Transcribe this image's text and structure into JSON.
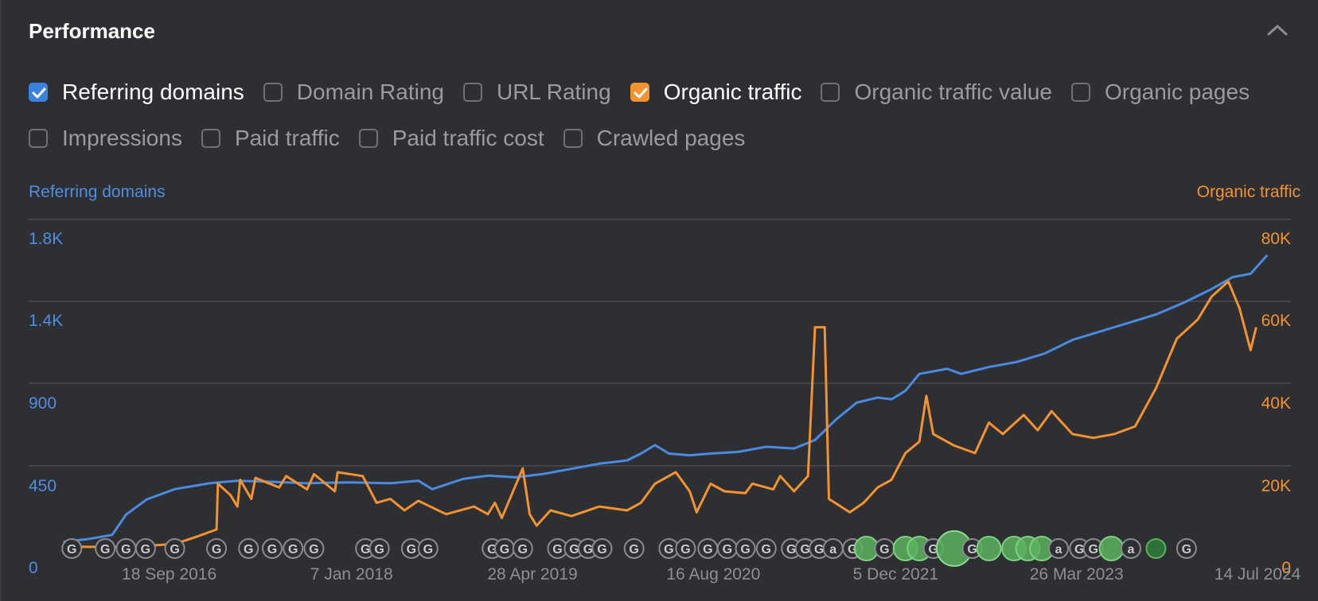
{
  "panel": {
    "title": "Performance"
  },
  "icons": {
    "collapse": "chevron-up-icon",
    "checkbox_checked": "check-icon",
    "google_update": "google-g-icon"
  },
  "colors": {
    "background": "#2e2f32",
    "referring_domains": "#4a8ae0",
    "organic_traffic": "#f39231",
    "grid": "#4a4b4f",
    "marker_gray": "#8a8b8f",
    "marker_green": "#5bb15e"
  },
  "metrics": [
    {
      "key": "referring-domains",
      "label": "Referring domains",
      "checked": true,
      "color": "blue"
    },
    {
      "key": "domain-rating",
      "label": "Domain Rating",
      "checked": false
    },
    {
      "key": "url-rating",
      "label": "URL Rating",
      "checked": false
    },
    {
      "key": "organic-traffic",
      "label": "Organic traffic",
      "checked": true,
      "color": "orange"
    },
    {
      "key": "organic-traffic-value",
      "label": "Organic traffic value",
      "checked": false
    },
    {
      "key": "organic-pages",
      "label": "Organic pages",
      "checked": false
    },
    {
      "key": "impressions",
      "label": "Impressions",
      "checked": false
    },
    {
      "key": "paid-traffic",
      "label": "Paid traffic",
      "checked": false
    },
    {
      "key": "paid-traffic-cost",
      "label": "Paid traffic cost",
      "checked": false
    },
    {
      "key": "crawled-pages",
      "label": "Crawled pages",
      "checked": false
    }
  ],
  "chart_data": {
    "type": "line",
    "left_axis_title": "Referring domains",
    "right_axis_title": "Organic traffic",
    "left_ticks": [
      "0",
      "450",
      "900",
      "1.4K",
      "1.8K"
    ],
    "right_ticks": [
      "0",
      "20K",
      "40K",
      "60K",
      "80K"
    ],
    "left_ylim": [
      0,
      1800
    ],
    "right_ylim": [
      0,
      80000
    ],
    "x_ticks": [
      {
        "label": "18 Sep 2016",
        "t": 2016.71
      },
      {
        "label": "7 Jan 2018",
        "t": 2018.02
      },
      {
        "label": "28 Apr 2019",
        "t": 2019.32
      },
      {
        "label": "16 Aug 2020",
        "t": 2020.62
      },
      {
        "label": "5 Dec 2021",
        "t": 2021.93
      },
      {
        "label": "26 Mar 2023",
        "t": 2023.23
      },
      {
        "label": "14 Jul 2024",
        "t": 2024.53
      }
    ],
    "xlim": [
      2015.7,
      2024.77
    ],
    "grid": true,
    "series": [
      {
        "name": "Referring domains",
        "axis": "left",
        "points": [
          [
            2015.95,
            40
          ],
          [
            2016.12,
            55
          ],
          [
            2016.3,
            80
          ],
          [
            2016.4,
            200
          ],
          [
            2016.55,
            290
          ],
          [
            2016.75,
            350
          ],
          [
            2017.0,
            385
          ],
          [
            2017.2,
            400
          ],
          [
            2017.4,
            395
          ],
          [
            2017.7,
            385
          ],
          [
            2018.0,
            390
          ],
          [
            2018.3,
            385
          ],
          [
            2018.5,
            400
          ],
          [
            2018.6,
            350
          ],
          [
            2018.82,
            410
          ],
          [
            2019.0,
            430
          ],
          [
            2019.2,
            420
          ],
          [
            2019.4,
            440
          ],
          [
            2019.6,
            470
          ],
          [
            2019.8,
            500
          ],
          [
            2020.0,
            520
          ],
          [
            2020.1,
            560
          ],
          [
            2020.2,
            610
          ],
          [
            2020.3,
            560
          ],
          [
            2020.45,
            550
          ],
          [
            2020.6,
            560
          ],
          [
            2020.8,
            570
          ],
          [
            2021.0,
            600
          ],
          [
            2021.2,
            590
          ],
          [
            2021.35,
            640
          ],
          [
            2021.5,
            760
          ],
          [
            2021.65,
            860
          ],
          [
            2021.8,
            890
          ],
          [
            2021.9,
            880
          ],
          [
            2022.0,
            930
          ],
          [
            2022.1,
            1030
          ],
          [
            2022.3,
            1060
          ],
          [
            2022.4,
            1030
          ],
          [
            2022.6,
            1070
          ],
          [
            2022.8,
            1100
          ],
          [
            2023.0,
            1150
          ],
          [
            2023.2,
            1230
          ],
          [
            2023.4,
            1280
          ],
          [
            2023.6,
            1330
          ],
          [
            2023.8,
            1380
          ],
          [
            2024.0,
            1450
          ],
          [
            2024.2,
            1530
          ],
          [
            2024.35,
            1600
          ],
          [
            2024.48,
            1620
          ],
          [
            2024.6,
            1730
          ]
        ]
      },
      {
        "name": "Organic traffic",
        "axis": "right",
        "points": [
          [
            2015.95,
            500
          ],
          [
            2016.3,
            400
          ],
          [
            2016.5,
            600
          ],
          [
            2016.75,
            1200
          ],
          [
            2016.9,
            3000
          ],
          [
            2017.05,
            5000
          ],
          [
            2017.06,
            17000
          ],
          [
            2017.15,
            14000
          ],
          [
            2017.2,
            11000
          ],
          [
            2017.22,
            18000
          ],
          [
            2017.3,
            13000
          ],
          [
            2017.33,
            18500
          ],
          [
            2017.5,
            16000
          ],
          [
            2017.55,
            19000
          ],
          [
            2017.7,
            15500
          ],
          [
            2017.75,
            19500
          ],
          [
            2017.9,
            15000
          ],
          [
            2017.92,
            20000
          ],
          [
            2018.1,
            19000
          ],
          [
            2018.2,
            12000
          ],
          [
            2018.3,
            13000
          ],
          [
            2018.4,
            10000
          ],
          [
            2018.5,
            12500
          ],
          [
            2018.7,
            9000
          ],
          [
            2018.9,
            11000
          ],
          [
            2019.0,
            9000
          ],
          [
            2019.05,
            12000
          ],
          [
            2019.1,
            8000
          ],
          [
            2019.25,
            21000
          ],
          [
            2019.3,
            9000
          ],
          [
            2019.35,
            6000
          ],
          [
            2019.45,
            10000
          ],
          [
            2019.6,
            8500
          ],
          [
            2019.8,
            11000
          ],
          [
            2020.0,
            10000
          ],
          [
            2020.1,
            12000
          ],
          [
            2020.2,
            17000
          ],
          [
            2020.35,
            20000
          ],
          [
            2020.45,
            15000
          ],
          [
            2020.5,
            9500
          ],
          [
            2020.6,
            17000
          ],
          [
            2020.7,
            15000
          ],
          [
            2020.85,
            14500
          ],
          [
            2020.9,
            17000
          ],
          [
            2021.05,
            15500
          ],
          [
            2021.1,
            19000
          ],
          [
            2021.2,
            15000
          ],
          [
            2021.3,
            19000
          ],
          [
            2021.35,
            58000
          ],
          [
            2021.42,
            58000
          ],
          [
            2021.45,
            13000
          ],
          [
            2021.6,
            9500
          ],
          [
            2021.7,
            12000
          ],
          [
            2021.8,
            16000
          ],
          [
            2021.9,
            18000
          ],
          [
            2022.0,
            25000
          ],
          [
            2022.1,
            28000
          ],
          [
            2022.15,
            40000
          ],
          [
            2022.2,
            30000
          ],
          [
            2022.35,
            27000
          ],
          [
            2022.5,
            25000
          ],
          [
            2022.6,
            33000
          ],
          [
            2022.7,
            30000
          ],
          [
            2022.85,
            35000
          ],
          [
            2022.95,
            31000
          ],
          [
            2023.05,
            36000
          ],
          [
            2023.2,
            30000
          ],
          [
            2023.35,
            29000
          ],
          [
            2023.5,
            30000
          ],
          [
            2023.65,
            32000
          ],
          [
            2023.8,
            42000
          ],
          [
            2023.95,
            55000
          ],
          [
            2024.1,
            60000
          ],
          [
            2024.2,
            66000
          ],
          [
            2024.32,
            70000
          ],
          [
            2024.4,
            63000
          ],
          [
            2024.48,
            52000
          ],
          [
            2024.52,
            58000
          ]
        ]
      }
    ],
    "annotation_markers": [
      {
        "t": 2016.01,
        "kind": "G"
      },
      {
        "t": 2016.25,
        "kind": "G"
      },
      {
        "t": 2016.4,
        "kind": "G"
      },
      {
        "t": 2016.54,
        "kind": "G"
      },
      {
        "t": 2016.75,
        "kind": "G"
      },
      {
        "t": 2017.05,
        "kind": "G"
      },
      {
        "t": 2017.28,
        "kind": "G"
      },
      {
        "t": 2017.45,
        "kind": "G"
      },
      {
        "t": 2017.6,
        "kind": "G"
      },
      {
        "t": 2017.75,
        "kind": "G"
      },
      {
        "t": 2018.12,
        "kind": "G"
      },
      {
        "t": 2018.22,
        "kind": "G"
      },
      {
        "t": 2018.45,
        "kind": "G"
      },
      {
        "t": 2018.57,
        "kind": "G"
      },
      {
        "t": 2019.03,
        "kind": "G"
      },
      {
        "t": 2019.12,
        "kind": "G"
      },
      {
        "t": 2019.25,
        "kind": "G"
      },
      {
        "t": 2019.5,
        "kind": "G"
      },
      {
        "t": 2019.62,
        "kind": "G"
      },
      {
        "t": 2019.72,
        "kind": "G"
      },
      {
        "t": 2019.82,
        "kind": "G"
      },
      {
        "t": 2020.05,
        "kind": "G"
      },
      {
        "t": 2020.3,
        "kind": "G"
      },
      {
        "t": 2020.42,
        "kind": "G"
      },
      {
        "t": 2020.58,
        "kind": "G"
      },
      {
        "t": 2020.72,
        "kind": "G"
      },
      {
        "t": 2020.85,
        "kind": "G"
      },
      {
        "t": 2021.0,
        "kind": "G"
      },
      {
        "t": 2021.18,
        "kind": "G"
      },
      {
        "t": 2021.28,
        "kind": "G"
      },
      {
        "t": 2021.38,
        "kind": "G"
      },
      {
        "t": 2021.48,
        "kind": "a"
      },
      {
        "t": 2021.62,
        "kind": "G"
      },
      {
        "t": 2021.72,
        "kind": "green"
      },
      {
        "t": 2021.85,
        "kind": "G"
      },
      {
        "t": 2022.0,
        "kind": "green"
      },
      {
        "t": 2022.1,
        "kind": "green"
      },
      {
        "t": 2022.2,
        "kind": "G"
      },
      {
        "t": 2022.35,
        "kind": "green_big"
      },
      {
        "t": 2022.48,
        "kind": "G"
      },
      {
        "t": 2022.6,
        "kind": "green"
      },
      {
        "t": 2022.78,
        "kind": "green"
      },
      {
        "t": 2022.88,
        "kind": "green"
      },
      {
        "t": 2022.98,
        "kind": "green"
      },
      {
        "t": 2023.1,
        "kind": "a"
      },
      {
        "t": 2023.25,
        "kind": "G"
      },
      {
        "t": 2023.35,
        "kind": "G"
      },
      {
        "t": 2023.48,
        "kind": "green"
      },
      {
        "t": 2023.62,
        "kind": "a"
      },
      {
        "t": 2023.8,
        "kind": "green_dark"
      },
      {
        "t": 2024.02,
        "kind": "G"
      }
    ]
  }
}
